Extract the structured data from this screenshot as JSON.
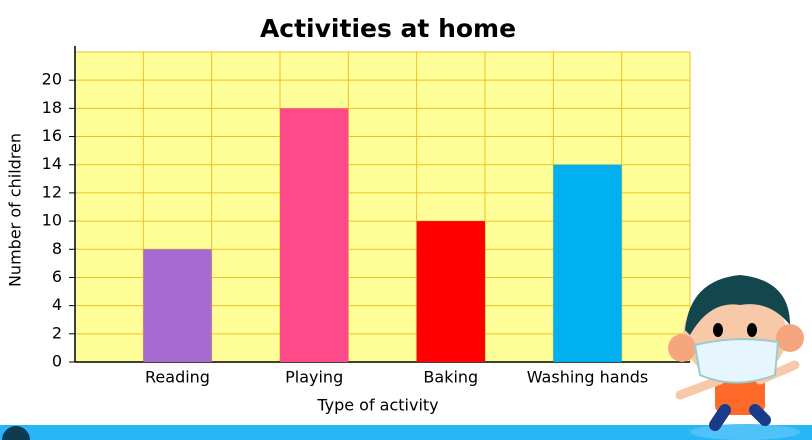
{
  "chart_data": {
    "type": "bar",
    "title": "Activities at home",
    "x_label": "Type of activity",
    "y_label": "Number of children",
    "categories": [
      "Reading",
      "Playing",
      "Baking",
      "Washing hands"
    ],
    "values": [
      8,
      18,
      10,
      14
    ],
    "colors": [
      "#a56bd0",
      "#ff4a8a",
      "#ff0000",
      "#00b0f0"
    ],
    "ylim": [
      0,
      22
    ],
    "yticks": [
      0,
      2,
      4,
      6,
      8,
      10,
      12,
      14,
      16,
      18,
      20
    ],
    "grid": true
  }
}
